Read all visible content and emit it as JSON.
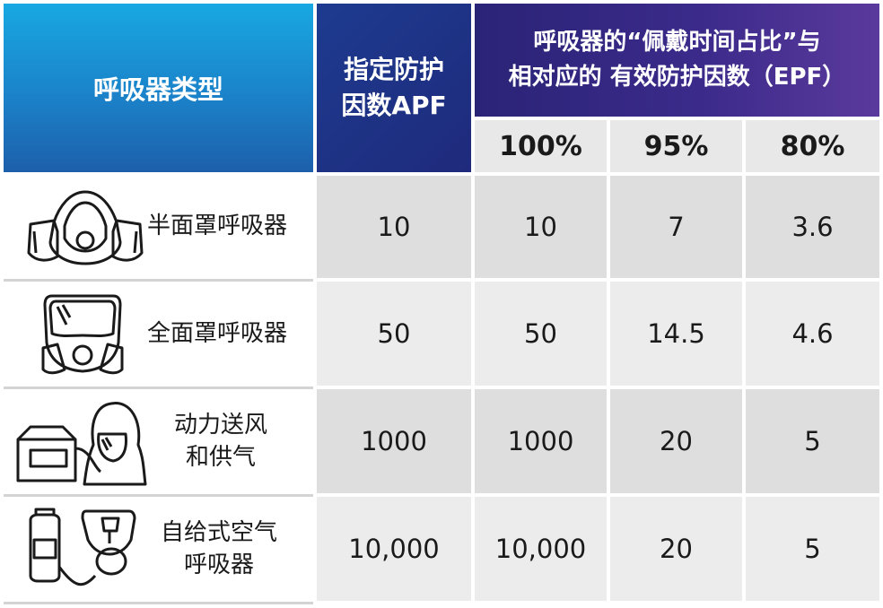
{
  "header": {
    "type_label": "呼吸器类型",
    "apf_line1": "指定防护",
    "apf_line2": "因数APF",
    "epf_line1": "呼吸器的“佩戴时间占比”与",
    "epf_line2": "相对应的 有效防护因数（EPF）",
    "sub": [
      "100%",
      "95%",
      "80%"
    ]
  },
  "rows": [
    {
      "name_line1": "半面罩呼吸器",
      "name_line2": "",
      "icon": "half-mask-respirator-icon",
      "apf": "10",
      "epf": [
        "10",
        "7",
        "3.6"
      ]
    },
    {
      "name_line1": "全面罩呼吸器",
      "name_line2": "",
      "icon": "full-face-respirator-icon",
      "apf": "50",
      "epf": [
        "50",
        "14.5",
        "4.6"
      ]
    },
    {
      "name_line1": "动力送风",
      "name_line2": "和供气",
      "icon": "powered-air-hood-icon",
      "apf": "1000",
      "epf": [
        "1000",
        "20",
        "5"
      ]
    },
    {
      "name_line1": "自给式空气",
      "name_line2": "呼吸器",
      "icon": "scba-tank-mask-icon",
      "apf": "10,000",
      "epf": [
        "10,000",
        "20",
        "5"
      ]
    }
  ],
  "colors": {
    "header_blue": "#1b82c9",
    "header_navy": "#1f2a7c",
    "header_purple": "#3b2a8a",
    "cell_gray": "#dedede"
  }
}
